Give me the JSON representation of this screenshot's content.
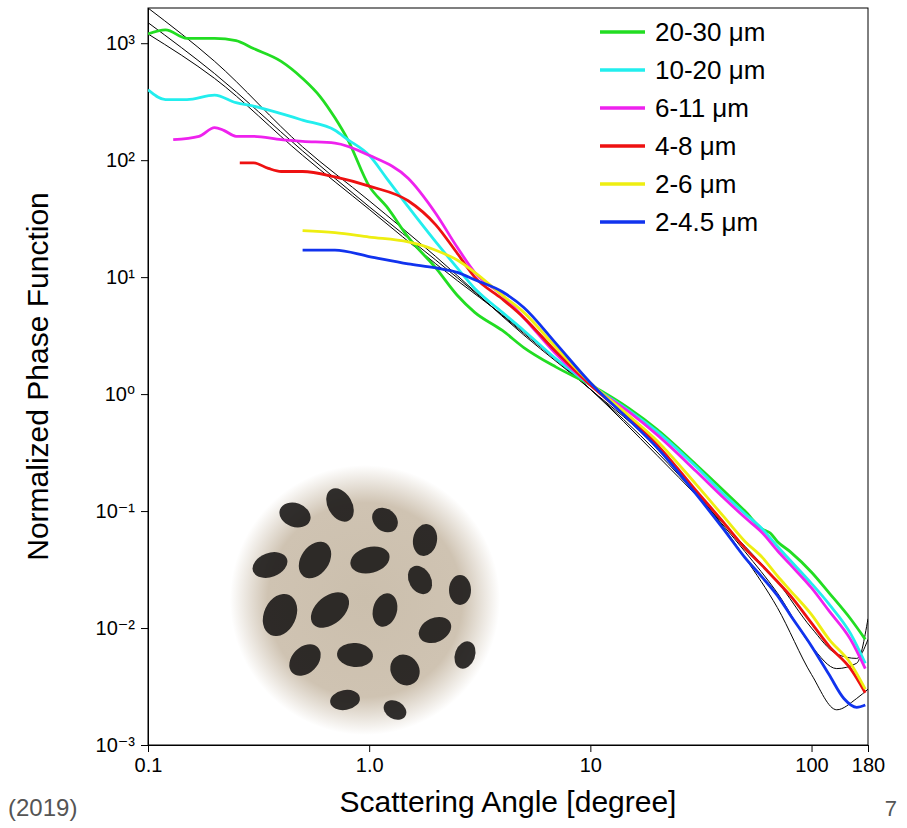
{
  "chart_data": {
    "type": "line",
    "x_label": "Scattering Angle [degree]",
    "y_label": "Normalized Phase Function",
    "annotations": [
      "(2019)",
      "7"
    ],
    "log": true,
    "grid": false,
    "legend": "top-right",
    "xlim": [
      0.1,
      180
    ],
    "ylim": [
      0.001,
      2000
    ],
    "xticks": [
      0.1,
      {
        "value": 1,
        "label": "1.0"
      },
      10,
      100,
      180
    ],
    "yticks": [
      {
        "value": 0.001,
        "label": "10⁻³"
      },
      {
        "value": 0.01,
        "label": "10⁻²"
      },
      {
        "value": 0.1,
        "label": "10⁻¹"
      },
      {
        "value": 1,
        "label": "10⁰"
      },
      {
        "value": 10,
        "label": "10¹"
      },
      {
        "value": 100,
        "label": "10²"
      },
      {
        "value": 1000,
        "label": "10³"
      }
    ],
    "series": [
      {
        "name": "20-30 μm",
        "color": "#22dd22",
        "x": [
          0.1,
          0.12,
          0.15,
          0.2,
          0.25,
          0.3,
          0.4,
          0.5,
          0.6,
          0.7,
          0.8,
          1,
          1.2,
          1.5,
          2,
          2.5,
          3,
          4,
          5,
          7,
          10,
          15,
          20,
          30,
          40,
          50,
          60,
          65,
          70,
          80,
          100,
          120,
          150,
          175
        ],
        "values": [
          1200,
          1300,
          1100,
          1100,
          1050,
          900,
          700,
          500,
          350,
          230,
          150,
          60,
          40,
          22,
          12,
          7,
          5,
          3.5,
          2.5,
          1.7,
          1.2,
          0.75,
          0.5,
          0.25,
          0.15,
          0.1,
          0.07,
          0.065,
          0.055,
          0.045,
          0.03,
          0.02,
          0.012,
          0.008
        ]
      },
      {
        "name": "10-20 μm",
        "color": "#22eeee",
        "x": [
          0.1,
          0.12,
          0.15,
          0.2,
          0.25,
          0.3,
          0.4,
          0.5,
          0.7,
          0.8,
          1,
          1.2,
          1.5,
          2,
          2.5,
          3,
          4,
          5,
          7,
          10,
          15,
          20,
          30,
          40,
          50,
          60,
          70,
          80,
          100,
          120,
          150,
          175
        ],
        "values": [
          400,
          330,
          330,
          360,
          310,
          290,
          250,
          220,
          180,
          150,
          110,
          70,
          40,
          20,
          12,
          8,
          5,
          3.5,
          2,
          1.2,
          0.72,
          0.48,
          0.24,
          0.14,
          0.095,
          0.07,
          0.05,
          0.038,
          0.024,
          0.016,
          0.009,
          0.005
        ]
      },
      {
        "name": "6-11 μm",
        "color": "#ee22ee",
        "x": [
          0.13,
          0.17,
          0.2,
          0.22,
          0.25,
          0.3,
          0.4,
          0.5,
          0.7,
          1,
          1.5,
          2,
          2.5,
          3,
          4,
          5,
          7,
          10,
          15,
          20,
          30,
          40,
          50,
          60,
          70,
          80,
          100,
          120,
          150,
          175
        ],
        "values": [
          150,
          160,
          190,
          180,
          160,
          160,
          150,
          145,
          140,
          110,
          70,
          35,
          18,
          11,
          7,
          4.5,
          2.2,
          1.2,
          0.7,
          0.45,
          0.22,
          0.13,
          0.088,
          0.065,
          0.046,
          0.035,
          0.022,
          0.014,
          0.008,
          0.0045
        ]
      },
      {
        "name": "4-8 μm",
        "color": "#ee1111",
        "x": [
          0.26,
          0.3,
          0.35,
          0.4,
          0.5,
          0.7,
          1,
          1.5,
          2,
          2.5,
          3,
          4,
          5,
          7,
          10,
          15,
          20,
          30,
          40,
          50,
          60,
          70,
          80,
          100,
          120,
          150,
          175
        ],
        "values": [
          95,
          95,
          85,
          80,
          80,
          72,
          60,
          45,
          28,
          16,
          10,
          6.5,
          4.5,
          2.3,
          1.2,
          0.62,
          0.37,
          0.15,
          0.08,
          0.048,
          0.034,
          0.025,
          0.019,
          0.011,
          0.007,
          0.0045,
          0.0028
        ]
      },
      {
        "name": "2-6 μm",
        "color": "#eeee11",
        "x": [
          0.5,
          0.7,
          1,
          1.5,
          2,
          2.5,
          3,
          4,
          5,
          7,
          10,
          15,
          20,
          30,
          40,
          50,
          60,
          70,
          80,
          100,
          120,
          150,
          175
        ],
        "values": [
          25,
          24,
          22,
          20,
          17,
          14,
          11,
          7,
          5,
          2.5,
          1.25,
          0.65,
          0.4,
          0.17,
          0.09,
          0.055,
          0.04,
          0.028,
          0.021,
          0.013,
          0.008,
          0.005,
          0.003
        ]
      },
      {
        "name": "2-4.5 μm",
        "color": "#1133ee",
        "x": [
          0.5,
          0.7,
          1,
          1.5,
          2,
          2.5,
          3,
          4,
          5,
          7,
          10,
          15,
          20,
          30,
          40,
          50,
          60,
          70,
          80,
          100,
          120,
          140,
          160,
          175
        ],
        "values": [
          17,
          17,
          15,
          13,
          12,
          11,
          9.5,
          7.5,
          5.5,
          2.7,
          1.25,
          0.6,
          0.35,
          0.14,
          0.07,
          0.04,
          0.027,
          0.019,
          0.013,
          0.007,
          0.004,
          0.0025,
          0.0021,
          0.0022
        ]
      },
      {
        "color": "#000000",
        "x": [
          0.1,
          0.2,
          0.5,
          1,
          2,
          5,
          10,
          20,
          50,
          70,
          100,
          130,
          160,
          180
        ],
        "values": [
          2000,
          700,
          130,
          45,
          15,
          3.2,
          1.1,
          0.35,
          0.04,
          0.015,
          0.004,
          0.002,
          0.0025,
          0.003
        ]
      },
      {
        "color": "#000000",
        "x": [
          0.1,
          0.2,
          0.5,
          1,
          2,
          5,
          10,
          20,
          50,
          70,
          100,
          130,
          160,
          180
        ],
        "values": [
          1500,
          550,
          120,
          40,
          14,
          3.3,
          1.1,
          0.32,
          0.045,
          0.02,
          0.007,
          0.0045,
          0.005,
          0.012
        ]
      },
      {
        "color": "#000000",
        "x": [
          0.1,
          0.2,
          0.5,
          1,
          2,
          5,
          10,
          20,
          50,
          70,
          100,
          130,
          160,
          180
        ],
        "values": [
          1200,
          500,
          110,
          38,
          13,
          3.4,
          1.1,
          0.3,
          0.05,
          0.025,
          0.01,
          0.006,
          0.0055,
          0.008
        ]
      }
    ]
  }
}
